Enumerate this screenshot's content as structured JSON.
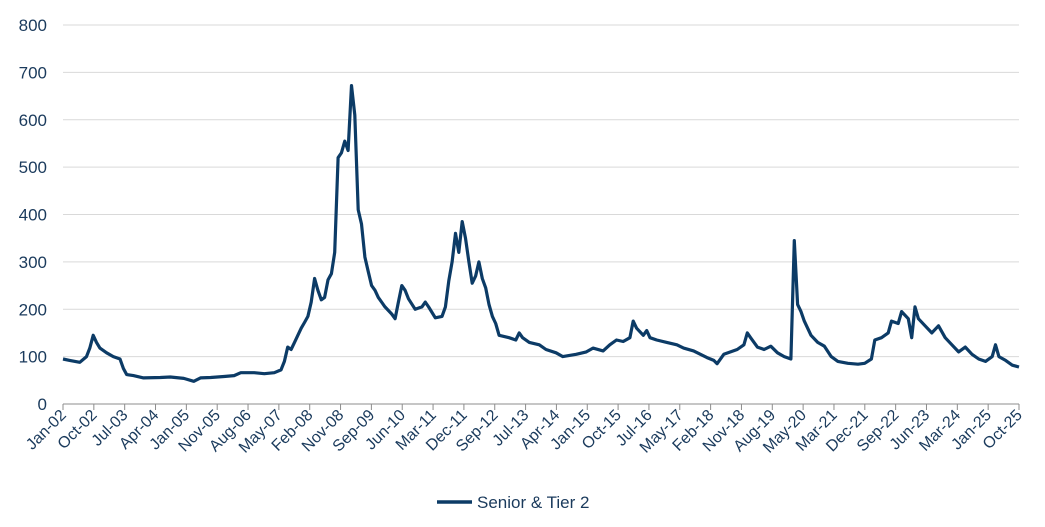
{
  "chart_data": {
    "type": "line",
    "title": "",
    "xlabel": "",
    "ylabel": "",
    "ylim": [
      0,
      800
    ],
    "yticks": [
      0,
      100,
      200,
      300,
      400,
      500,
      600,
      700,
      800
    ],
    "xticks": [
      "Jan-02",
      "Oct-02",
      "Jul-03",
      "Apr-04",
      "Jan-05",
      "Nov-05",
      "Aug-06",
      "May-07",
      "Feb-08",
      "Nov-08",
      "Sep-09",
      "Jun-10",
      "Mar-11",
      "Dec-11",
      "Sep-12",
      "Jul-13",
      "Apr-14",
      "Jan-15",
      "Oct-15",
      "Jul-16",
      "May-17",
      "Feb-18",
      "Nov-18",
      "Aug-19",
      "May-20",
      "Mar-21",
      "Dec-21",
      "Sep-22",
      "Jun-23",
      "Mar-24",
      "Jan-25",
      "Oct-25"
    ],
    "xlim": [
      "2002-01",
      "2025-10"
    ],
    "grid": true,
    "legend": "bottom",
    "color": "#0c3b66",
    "series": [
      {
        "name": "Senior & Tier 2",
        "points": [
          [
            "2002-01",
            95
          ],
          [
            "2002-03",
            92
          ],
          [
            "2002-06",
            88
          ],
          [
            "2002-08",
            100
          ],
          [
            "2002-09",
            118
          ],
          [
            "2002-10",
            145
          ],
          [
            "2002-11",
            130
          ],
          [
            "2002-12",
            118
          ],
          [
            "2003-02",
            108
          ],
          [
            "2003-04",
            100
          ],
          [
            "2003-06",
            95
          ],
          [
            "2003-07",
            75
          ],
          [
            "2003-08",
            62
          ],
          [
            "2003-10",
            60
          ],
          [
            "2004-01",
            55
          ],
          [
            "2004-06",
            56
          ],
          [
            "2004-09",
            57
          ],
          [
            "2005-01",
            54
          ],
          [
            "2005-04",
            48
          ],
          [
            "2005-06",
            55
          ],
          [
            "2005-09",
            56
          ],
          [
            "2006-01",
            58
          ],
          [
            "2006-04",
            60
          ],
          [
            "2006-06",
            66
          ],
          [
            "2006-10",
            66
          ],
          [
            "2007-01",
            64
          ],
          [
            "2007-04",
            66
          ],
          [
            "2007-06",
            72
          ],
          [
            "2007-07",
            90
          ],
          [
            "2007-08",
            120
          ],
          [
            "2007-09",
            115
          ],
          [
            "2007-10",
            130
          ],
          [
            "2007-12",
            160
          ],
          [
            "2008-01",
            172
          ],
          [
            "2008-02",
            185
          ],
          [
            "2008-03",
            215
          ],
          [
            "2008-04",
            265
          ],
          [
            "2008-05",
            240
          ],
          [
            "2008-06",
            220
          ],
          [
            "2008-07",
            225
          ],
          [
            "2008-08",
            262
          ],
          [
            "2008-09",
            275
          ],
          [
            "2008-10",
            320
          ],
          [
            "2008-11",
            520
          ],
          [
            "2008-12",
            530
          ],
          [
            "2009-01",
            555
          ],
          [
            "2009-02",
            535
          ],
          [
            "2009-03",
            672
          ],
          [
            "2009-04",
            610
          ],
          [
            "2009-05",
            410
          ],
          [
            "2009-06",
            380
          ],
          [
            "2009-07",
            310
          ],
          [
            "2009-08",
            280
          ],
          [
            "2009-09",
            250
          ],
          [
            "2009-10",
            240
          ],
          [
            "2009-11",
            225
          ],
          [
            "2010-01",
            205
          ],
          [
            "2010-03",
            190
          ],
          [
            "2010-04",
            180
          ],
          [
            "2010-05",
            215
          ],
          [
            "2010-06",
            250
          ],
          [
            "2010-07",
            240
          ],
          [
            "2010-08",
            222
          ],
          [
            "2010-10",
            200
          ],
          [
            "2010-12",
            205
          ],
          [
            "2011-01",
            215
          ],
          [
            "2011-02",
            205
          ],
          [
            "2011-04",
            182
          ],
          [
            "2011-06",
            185
          ],
          [
            "2011-07",
            205
          ],
          [
            "2011-08",
            260
          ],
          [
            "2011-09",
            300
          ],
          [
            "2011-10",
            360
          ],
          [
            "2011-11",
            320
          ],
          [
            "2011-12",
            385
          ],
          [
            "2012-01",
            350
          ],
          [
            "2012-02",
            300
          ],
          [
            "2012-03",
            255
          ],
          [
            "2012-04",
            270
          ],
          [
            "2012-05",
            300
          ],
          [
            "2012-06",
            265
          ],
          [
            "2012-07",
            245
          ],
          [
            "2012-08",
            210
          ],
          [
            "2012-09",
            185
          ],
          [
            "2012-10",
            170
          ],
          [
            "2012-11",
            145
          ],
          [
            "2013-02",
            140
          ],
          [
            "2013-04",
            135
          ],
          [
            "2013-05",
            150
          ],
          [
            "2013-06",
            140
          ],
          [
            "2013-08",
            130
          ],
          [
            "2013-11",
            125
          ],
          [
            "2014-01",
            115
          ],
          [
            "2014-04",
            108
          ],
          [
            "2014-06",
            100
          ],
          [
            "2014-10",
            105
          ],
          [
            "2015-01",
            110
          ],
          [
            "2015-03",
            118
          ],
          [
            "2015-06",
            112
          ],
          [
            "2015-08",
            125
          ],
          [
            "2015-10",
            135
          ],
          [
            "2015-12",
            132
          ],
          [
            "2016-02",
            140
          ],
          [
            "2016-03",
            175
          ],
          [
            "2016-04",
            160
          ],
          [
            "2016-06",
            145
          ],
          [
            "2016-07",
            155
          ],
          [
            "2016-08",
            140
          ],
          [
            "2016-10",
            135
          ],
          [
            "2017-01",
            130
          ],
          [
            "2017-04",
            125
          ],
          [
            "2017-06",
            118
          ],
          [
            "2017-09",
            112
          ],
          [
            "2018-01",
            98
          ],
          [
            "2018-03",
            92
          ],
          [
            "2018-04",
            85
          ],
          [
            "2018-06",
            105
          ],
          [
            "2018-08",
            110
          ],
          [
            "2018-10",
            115
          ],
          [
            "2018-12",
            125
          ],
          [
            "2019-01",
            150
          ],
          [
            "2019-02",
            140
          ],
          [
            "2019-04",
            120
          ],
          [
            "2019-06",
            115
          ],
          [
            "2019-08",
            122
          ],
          [
            "2019-10",
            108
          ],
          [
            "2019-12",
            100
          ],
          [
            "2020-02",
            95
          ],
          [
            "2020-03",
            345
          ],
          [
            "2020-04",
            210
          ],
          [
            "2020-05",
            195
          ],
          [
            "2020-06",
            175
          ],
          [
            "2020-08",
            145
          ],
          [
            "2020-10",
            130
          ],
          [
            "2020-12",
            122
          ],
          [
            "2021-02",
            100
          ],
          [
            "2021-04",
            90
          ],
          [
            "2021-07",
            86
          ],
          [
            "2021-10",
            84
          ],
          [
            "2021-12",
            86
          ],
          [
            "2022-02",
            95
          ],
          [
            "2022-03",
            135
          ],
          [
            "2022-05",
            140
          ],
          [
            "2022-07",
            150
          ],
          [
            "2022-08",
            175
          ],
          [
            "2022-10",
            170
          ],
          [
            "2022-11",
            195
          ],
          [
            "2023-01",
            180
          ],
          [
            "2023-02",
            140
          ],
          [
            "2023-03",
            205
          ],
          [
            "2023-04",
            180
          ],
          [
            "2023-06",
            165
          ],
          [
            "2023-08",
            150
          ],
          [
            "2023-10",
            165
          ],
          [
            "2023-12",
            140
          ],
          [
            "2024-02",
            125
          ],
          [
            "2024-04",
            110
          ],
          [
            "2024-06",
            120
          ],
          [
            "2024-08",
            105
          ],
          [
            "2024-10",
            95
          ],
          [
            "2024-12",
            90
          ],
          [
            "2025-02",
            100
          ],
          [
            "2025-03",
            125
          ],
          [
            "2025-04",
            100
          ],
          [
            "2025-06",
            92
          ],
          [
            "2025-08",
            82
          ],
          [
            "2025-10",
            78
          ]
        ]
      }
    ]
  }
}
